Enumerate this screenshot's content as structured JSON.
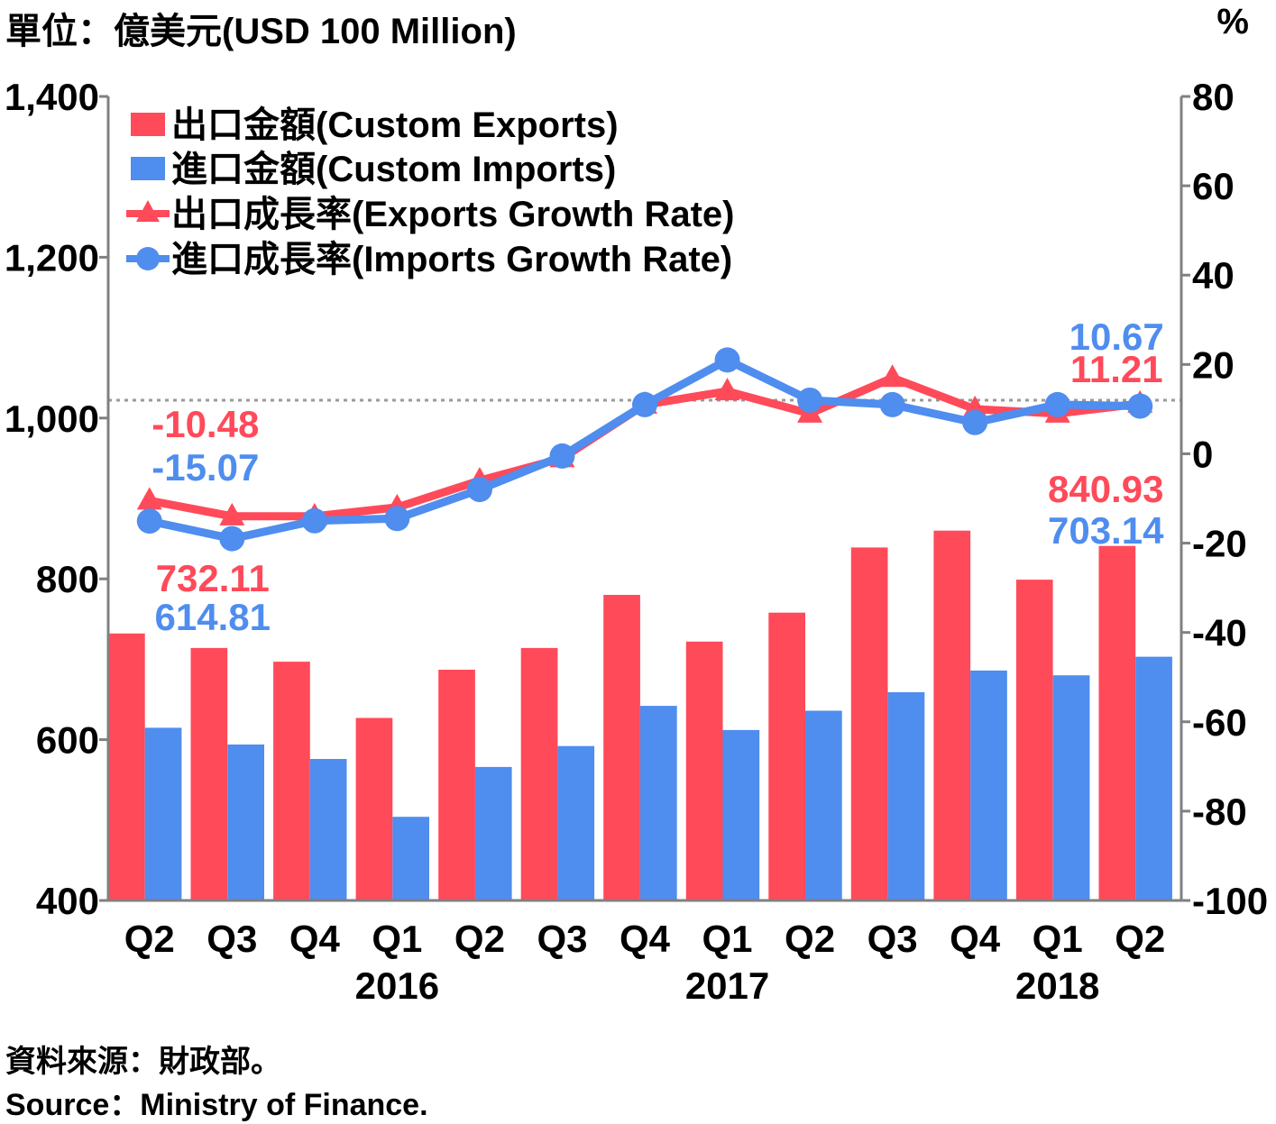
{
  "header": {
    "unit_left": "單位：億美元(USD 100 Million)",
    "unit_right": "%"
  },
  "footer": {
    "source_zh": "資料來源：財政部。",
    "source_en": "Source：Ministry of Finance."
  },
  "colors": {
    "exports": "#ff4a5a",
    "imports": "#4f8def",
    "axis": "#808080",
    "reference_line": "#9a9a9a"
  },
  "chart_data": {
    "type": "bar+line",
    "categories": [
      "Q2",
      "Q3",
      "Q4",
      "Q1",
      "Q2",
      "Q3",
      "Q4",
      "Q1",
      "Q2",
      "Q3",
      "Q4",
      "Q1",
      "Q2"
    ],
    "year_labels": [
      {
        "label": "2016",
        "category_index": 3
      },
      {
        "label": "2017",
        "category_index": 7
      },
      {
        "label": "2018",
        "category_index": 11
      }
    ],
    "y_left": {
      "min": 400,
      "max": 1400,
      "ticks": [
        400,
        600,
        800,
        1000,
        1200,
        1400
      ],
      "tick_labels": [
        "400",
        "600",
        "800",
        "1,000",
        "1,200",
        "1,400"
      ]
    },
    "y_right": {
      "min": -100,
      "max": 80,
      "ticks": [
        -100,
        -80,
        -60,
        -40,
        -20,
        0,
        20,
        40,
        60,
        80
      ],
      "tick_labels": [
        "-100",
        "-80",
        "-60",
        "-40",
        "-20",
        "0",
        "20",
        "40",
        "60",
        "80"
      ]
    },
    "reference_line_value": 12,
    "legend_position": "top-left",
    "series": [
      {
        "name": "出口金額(Custom Exports)",
        "kind": "bar",
        "axis": "left",
        "color_key": "exports",
        "values": [
          732.11,
          714,
          697,
          627,
          687,
          714,
          780,
          722,
          758,
          839,
          860,
          799,
          840.93
        ]
      },
      {
        "name": "進口金額(Custom Imports)",
        "kind": "bar",
        "axis": "left",
        "color_key": "imports",
        "values": [
          614.81,
          594,
          576,
          504,
          566,
          592,
          642,
          612,
          636,
          659,
          686,
          680,
          703.14
        ]
      },
      {
        "name": "出口成長率(Exports Growth Rate)",
        "kind": "line",
        "marker": "triangle",
        "axis": "right",
        "color_key": "exports",
        "values": [
          -10.48,
          -14,
          -14,
          -12,
          -6,
          -1,
          11,
          14,
          9,
          17,
          10,
          9,
          11.21
        ]
      },
      {
        "name": "進口成長率(Imports Growth Rate)",
        "kind": "line",
        "marker": "circle",
        "axis": "right",
        "color_key": "imports",
        "values": [
          -15.07,
          -19,
          -15,
          -14.5,
          -8,
          -0.5,
          11,
          21,
          12,
          11,
          7,
          11,
          10.67
        ]
      }
    ],
    "annotations": [
      {
        "text": "732.11",
        "series_index": 0,
        "point_index": 0
      },
      {
        "text": "614.81",
        "series_index": 1,
        "point_index": 0
      },
      {
        "text": "840.93",
        "series_index": 0,
        "point_index": 12
      },
      {
        "text": "703.14",
        "series_index": 1,
        "point_index": 12
      },
      {
        "text": "-10.48",
        "series_index": 2,
        "point_index": 0
      },
      {
        "text": "-15.07",
        "series_index": 3,
        "point_index": 0
      },
      {
        "text": "11.21",
        "series_index": 2,
        "point_index": 12
      },
      {
        "text": "10.67",
        "series_index": 3,
        "point_index": 12
      }
    ]
  }
}
